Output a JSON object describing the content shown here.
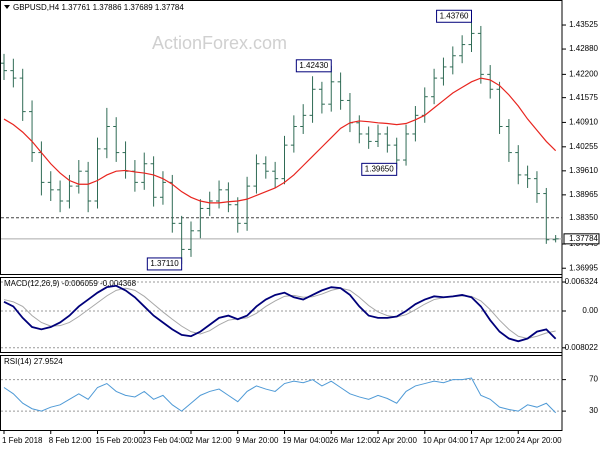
{
  "watermark": "ActionForex.com",
  "chart_data": [
    {
      "type": "ohlc",
      "title": "GBPUSD,H4 1.37761 1.37886 1.37689 1.37784",
      "color": "#2f6b55",
      "categories": [
        "1 Feb 2018",
        null,
        null,
        null,
        null,
        "8 Feb 12:00",
        null,
        null,
        null,
        null,
        "15 Feb 20:00",
        null,
        null,
        null,
        null,
        "23 Feb 04:00",
        null,
        null,
        null,
        null,
        "2 Mar 12:00",
        null,
        null,
        null,
        null,
        "9 Mar 20:00",
        null,
        null,
        null,
        null,
        "19 Mar 04:00",
        null,
        null,
        null,
        null,
        "26 Mar 12:00",
        null,
        null,
        null,
        null,
        "2 Apr 20:00",
        null,
        null,
        null,
        null,
        "10 Apr 04:00",
        null,
        null,
        null,
        null,
        "17 Apr 12:00",
        null,
        null,
        null,
        null,
        "24 Apr 20:00",
        null,
        null,
        null,
        null
      ],
      "open": [
        1.425,
        1.423,
        1.421,
        1.412,
        1.401,
        1.393,
        1.391,
        1.388,
        1.392,
        1.396,
        1.388,
        1.402,
        1.408,
        1.401,
        1.396,
        1.393,
        1.398,
        1.389,
        1.393,
        1.382,
        1.375,
        1.38,
        1.386,
        1.388,
        1.391,
        1.387,
        1.382,
        1.392,
        1.398,
        1.396,
        1.394,
        1.403,
        1.408,
        1.411,
        1.418,
        1.414,
        1.42,
        1.415,
        1.409,
        1.406,
        1.404,
        1.406,
        1.403,
        1.399,
        1.406,
        1.411,
        1.416,
        1.421,
        1.424,
        1.427,
        1.43,
        1.433,
        1.422,
        1.418,
        1.408,
        1.401,
        1.395,
        1.394,
        1.39,
        1.37761
      ],
      "high": [
        1.4275,
        1.4262,
        1.4235,
        1.415,
        1.404,
        1.396,
        1.3935,
        1.395,
        1.399,
        1.3985,
        1.405,
        1.413,
        1.4105,
        1.404,
        1.399,
        1.401,
        1.4,
        1.396,
        1.395,
        1.384,
        1.3825,
        1.3885,
        1.3905,
        1.3935,
        1.393,
        1.389,
        1.3945,
        1.4005,
        1.4,
        1.3985,
        1.4055,
        1.411,
        1.414,
        1.4215,
        1.42,
        1.4243,
        1.4225,
        1.417,
        1.411,
        1.408,
        1.4085,
        1.408,
        1.405,
        1.4085,
        1.4135,
        1.4185,
        1.4235,
        1.4265,
        1.4295,
        1.4325,
        1.4376,
        1.435,
        1.4245,
        1.42,
        1.41,
        1.403,
        1.3975,
        1.396,
        1.3915,
        1.37886
      ],
      "low": [
        1.4205,
        1.4185,
        1.4095,
        1.3985,
        1.3895,
        1.388,
        1.385,
        1.386,
        1.39,
        1.385,
        1.386,
        1.3995,
        1.3985,
        1.394,
        1.3905,
        1.391,
        1.3865,
        1.387,
        1.3795,
        1.3711,
        1.373,
        1.378,
        1.384,
        1.386,
        1.385,
        1.3795,
        1.38,
        1.39,
        1.394,
        1.3915,
        1.3925,
        1.401,
        1.406,
        1.409,
        1.4115,
        1.412,
        1.4125,
        1.4065,
        1.4035,
        1.402,
        1.4025,
        1.401,
        1.3965,
        1.3975,
        1.404,
        1.409,
        1.414,
        1.419,
        1.422,
        1.425,
        1.428,
        1.4195,
        1.4155,
        1.406,
        1.3985,
        1.3925,
        1.3915,
        1.3875,
        1.3765,
        1.37689
      ],
      "close": [
        1.423,
        1.421,
        1.412,
        1.401,
        1.393,
        1.391,
        1.388,
        1.392,
        1.396,
        1.388,
        1.402,
        1.408,
        1.401,
        1.396,
        1.393,
        1.398,
        1.389,
        1.393,
        1.382,
        1.375,
        1.38,
        1.386,
        1.388,
        1.391,
        1.387,
        1.382,
        1.392,
        1.398,
        1.396,
        1.394,
        1.403,
        1.408,
        1.411,
        1.418,
        1.414,
        1.42,
        1.415,
        1.409,
        1.406,
        1.404,
        1.406,
        1.403,
        1.399,
        1.406,
        1.411,
        1.416,
        1.421,
        1.424,
        1.427,
        1.43,
        1.433,
        1.422,
        1.418,
        1.408,
        1.401,
        1.395,
        1.394,
        1.39,
        1.3776,
        1.37784
      ],
      "ma": {
        "color": "#e8251f",
        "values": [
          1.41,
          1.4085,
          1.4065,
          1.404,
          1.401,
          1.398,
          1.3955,
          1.3935,
          1.3925,
          1.3925,
          1.3935,
          1.395,
          1.396,
          1.3962,
          1.3958,
          1.3955,
          1.395,
          1.394,
          1.3925,
          1.3905,
          1.389,
          1.388,
          1.3875,
          1.3875,
          1.3878,
          1.388,
          1.3885,
          1.3895,
          1.3905,
          1.3915,
          1.393,
          1.395,
          1.3975,
          1.4,
          1.4025,
          1.405,
          1.4075,
          1.409,
          1.4095,
          1.4093,
          1.409,
          1.4088,
          1.4085,
          1.4088,
          1.4098,
          1.411,
          1.413,
          1.415,
          1.417,
          1.4185,
          1.42,
          1.421,
          1.4205,
          1.419,
          1.4165,
          1.4135,
          1.41,
          1.407,
          1.404,
          1.4015
        ]
      },
      "ylim": [
        1.3684,
        1.4417
      ],
      "yticks": [
        1.43525,
        {
          "value": 1.4288,
          "label": "1.42880"
        },
        {
          "value": 1.422,
          "label": "1.42200"
        },
        1.41575,
        {
          "value": 1.4091,
          "label": "1.40910"
        },
        1.40255,
        {
          "value": 1.3961,
          "label": "1.39610"
        },
        1.38965,
        1.37645,
        1.36995
      ],
      "levels": [
        {
          "value": 1.3835,
          "label": "1.38350"
        }
      ],
      "last_price": {
        "value": 1.37784,
        "label": "1.37784"
      },
      "annotations": [
        {
          "value": 1.4376,
          "label": "1.43760"
        },
        {
          "value": 1.4243,
          "label": "1.42430"
        },
        {
          "value": 1.3965,
          "label": "1.39650"
        },
        {
          "value": 1.3711,
          "label": "1.37110"
        }
      ]
    },
    {
      "type": "macd",
      "title": "MACD(12,26,9) -0.006059 -0.004368",
      "grid": true,
      "series": [
        {
          "color": "#00007a",
          "values": [
            0.002,
            0.001,
            -0.0015,
            -0.0035,
            -0.004,
            -0.0035,
            -0.0025,
            -0.001,
            0.001,
            0.0025,
            0.004,
            0.0052,
            0.0055,
            0.0045,
            0.003,
            0.001,
            -0.001,
            -0.0025,
            -0.004,
            -0.0052,
            -0.0055,
            -0.0045,
            -0.003,
            -0.0015,
            -0.001,
            -0.0018,
            -0.001,
            0.001,
            0.0025,
            0.0035,
            0.004,
            0.003,
            0.0025,
            0.0035,
            0.0045,
            0.0052,
            0.005,
            0.0035,
            0.001,
            -0.001,
            -0.0015,
            -0.0015,
            -0.0012,
            0.0,
            0.0015,
            0.0025,
            0.0032,
            0.003,
            0.0032,
            0.0035,
            0.003,
            0.001,
            -0.002,
            -0.0045,
            -0.006,
            -0.0066,
            -0.006,
            -0.0045,
            -0.004,
            -0.006059
          ]
        },
        {
          "color": "#a8a8a8",
          "values": [
            0.0025,
            0.002,
            0.001,
            -0.001,
            -0.0025,
            -0.0033,
            -0.0032,
            -0.0025,
            -0.0012,
            0.0003,
            0.0018,
            0.0033,
            0.0045,
            0.005,
            0.0045,
            0.0032,
            0.0015,
            -0.0002,
            -0.0018,
            -0.0033,
            -0.0045,
            -0.005,
            -0.0043,
            -0.003,
            -0.002,
            -0.0017,
            -0.0015,
            -0.0005,
            0.001,
            0.0022,
            0.0032,
            0.0034,
            0.003,
            0.0031,
            0.0037,
            0.0045,
            0.005,
            0.0045,
            0.003,
            0.0012,
            -0.0002,
            -0.001,
            -0.0013,
            -0.0008,
            0.0003,
            0.0015,
            0.0025,
            0.0029,
            0.0031,
            0.0033,
            0.0032,
            0.0022,
            0.0003,
            -0.002,
            -0.004,
            -0.0055,
            -0.006,
            -0.0055,
            -0.0048,
            -0.004368
          ]
        }
      ],
      "ylim": [
        -0.00894,
        0.0072
      ],
      "yticks": [
        0.006324,
        {
          "value": 0,
          "label": "0.00"
        },
        -0.008022
      ]
    },
    {
      "type": "line",
      "title": "RSI(14) 27.9524",
      "color": "#4f9ad6",
      "grid": true,
      "values": [
        60,
        52,
        40,
        33,
        30,
        35,
        38,
        45,
        52,
        45,
        60,
        65,
        55,
        50,
        48,
        55,
        45,
        50,
        38,
        30,
        40,
        50,
        55,
        58,
        50,
        42,
        55,
        62,
        58,
        55,
        65,
        68,
        66,
        70,
        62,
        68,
        60,
        52,
        48,
        45,
        50,
        46,
        40,
        55,
        62,
        65,
        68,
        66,
        70,
        70,
        72,
        50,
        45,
        35,
        32,
        30,
        38,
        35,
        40,
        27.9524
      ],
      "ylim": [
        6,
        100
      ],
      "yticks": [
        70,
        30
      ]
    }
  ]
}
